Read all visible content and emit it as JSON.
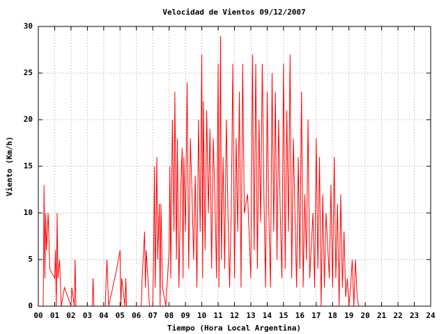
{
  "chart_data": {
    "type": "line",
    "title": "Velocidad de Vientos 09/12/2007",
    "x_label": "Tiempo (Hora Local Argentina)",
    "y_label": "Viento (Km/h)",
    "xlim": [
      0,
      24
    ],
    "xticks": [
      {
        "value": 0,
        "label": "00"
      },
      {
        "value": 1,
        "label": "01"
      },
      {
        "value": 2,
        "label": "02"
      },
      {
        "value": 3,
        "label": "03"
      },
      {
        "value": 4,
        "label": "04"
      },
      {
        "value": 5,
        "label": "05"
      },
      {
        "value": 6,
        "label": "06"
      },
      {
        "value": 7,
        "label": "07"
      },
      {
        "value": 8,
        "label": "08"
      },
      {
        "value": 9,
        "label": "09"
      },
      10,
      11,
      12,
      13,
      14,
      15,
      16,
      17,
      18,
      19,
      20,
      21,
      22,
      23,
      24
    ],
    "ylim": [
      0,
      30
    ],
    "yticks": [
      0,
      5,
      10,
      15,
      20,
      25,
      30
    ],
    "grid": true,
    "x": [
      0.3,
      0.35,
      0.4,
      0.45,
      0.5,
      0.6,
      0.7,
      1.0,
      1.05,
      1.1,
      1.15,
      1.2,
      1.3,
      1.4,
      1.6,
      2.0,
      2.05,
      2.2,
      2.25,
      2.3,
      3.3,
      3.35,
      3.4,
      4.1,
      4.15,
      4.2,
      4.3,
      4.8,
      5.0,
      5.05,
      5.1,
      5.3,
      5.35,
      5.4,
      6.3,
      6.35,
      6.5,
      6.55,
      6.6,
      6.8,
      7.0,
      7.05,
      7.1,
      7.15,
      7.25,
      7.3,
      7.4,
      7.45,
      7.5,
      7.6,
      7.8,
      8.0,
      8.05,
      8.1,
      8.2,
      8.3,
      8.35,
      8.45,
      8.5,
      8.6,
      8.7,
      8.8,
      8.85,
      8.9,
      9.0,
      9.1,
      9.2,
      9.3,
      9.4,
      9.5,
      9.6,
      9.7,
      9.8,
      9.9,
      10.0,
      10.05,
      10.1,
      10.2,
      10.3,
      10.4,
      10.5,
      10.6,
      10.7,
      10.8,
      10.9,
      11.0,
      11.05,
      11.15,
      11.2,
      11.3,
      11.4,
      11.5,
      11.6,
      11.7,
      11.8,
      11.9,
      12.0,
      12.1,
      12.2,
      12.3,
      12.4,
      12.5,
      12.6,
      12.8,
      13.0,
      13.1,
      13.2,
      13.3,
      13.4,
      13.5,
      13.6,
      13.7,
      13.8,
      13.9,
      14.0,
      14.1,
      14.2,
      14.3,
      14.4,
      14.5,
      14.6,
      14.7,
      14.8,
      14.9,
      15.0,
      15.1,
      15.2,
      15.3,
      15.4,
      15.5,
      15.6,
      15.7,
      15.8,
      15.9,
      16.0,
      16.1,
      16.2,
      16.3,
      16.4,
      16.5,
      16.6,
      16.8,
      16.9,
      17.0,
      17.1,
      17.2,
      17.3,
      17.4,
      17.5,
      17.6,
      17.8,
      17.9,
      18.0,
      18.1,
      18.2,
      18.3,
      18.4,
      18.5,
      18.6,
      18.7,
      18.8,
      18.9,
      19.0,
      19.1,
      19.2,
      19.3,
      19.4,
      19.5,
      19.6
    ],
    "series": [
      {
        "color": "#ff0000",
        "values": [
          0,
          13,
          3,
          10,
          6,
          10,
          4,
          3,
          6,
          0,
          10,
          3,
          5,
          0,
          2,
          0,
          2,
          0,
          5,
          0,
          0,
          3,
          0,
          0,
          3,
          5,
          0,
          4,
          6,
          0,
          3,
          0,
          3,
          0,
          0,
          3,
          8,
          2,
          6,
          0,
          0,
          5,
          15,
          2,
          16,
          5,
          11,
          0,
          11,
          2,
          0,
          6,
          15,
          3,
          20,
          8,
          23,
          5,
          18,
          2,
          12,
          17,
          3,
          16,
          8,
          24,
          4,
          18,
          12,
          5,
          14,
          2,
          20,
          8,
          27,
          3,
          22,
          6,
          21,
          10,
          19,
          4,
          18,
          12,
          3,
          26,
          2,
          29,
          5,
          16,
          4,
          20,
          10,
          2,
          10,
          26,
          3,
          18,
          8,
          23,
          2,
          26,
          10,
          12,
          3,
          27,
          6,
          26,
          4,
          20,
          9,
          26,
          12,
          2,
          23,
          10,
          2,
          25,
          8,
          23,
          5,
          20,
          10,
          3,
          26,
          4,
          21,
          8,
          27,
          3,
          18,
          10,
          2,
          16,
          4,
          23,
          2,
          12,
          5,
          20,
          3,
          10,
          2,
          18,
          4,
          16,
          0,
          12,
          2,
          10,
          3,
          13,
          2,
          16,
          3,
          11,
          0,
          12,
          2,
          8,
          1,
          3,
          0,
          2,
          5,
          0,
          5,
          1,
          0
        ]
      }
    ]
  }
}
